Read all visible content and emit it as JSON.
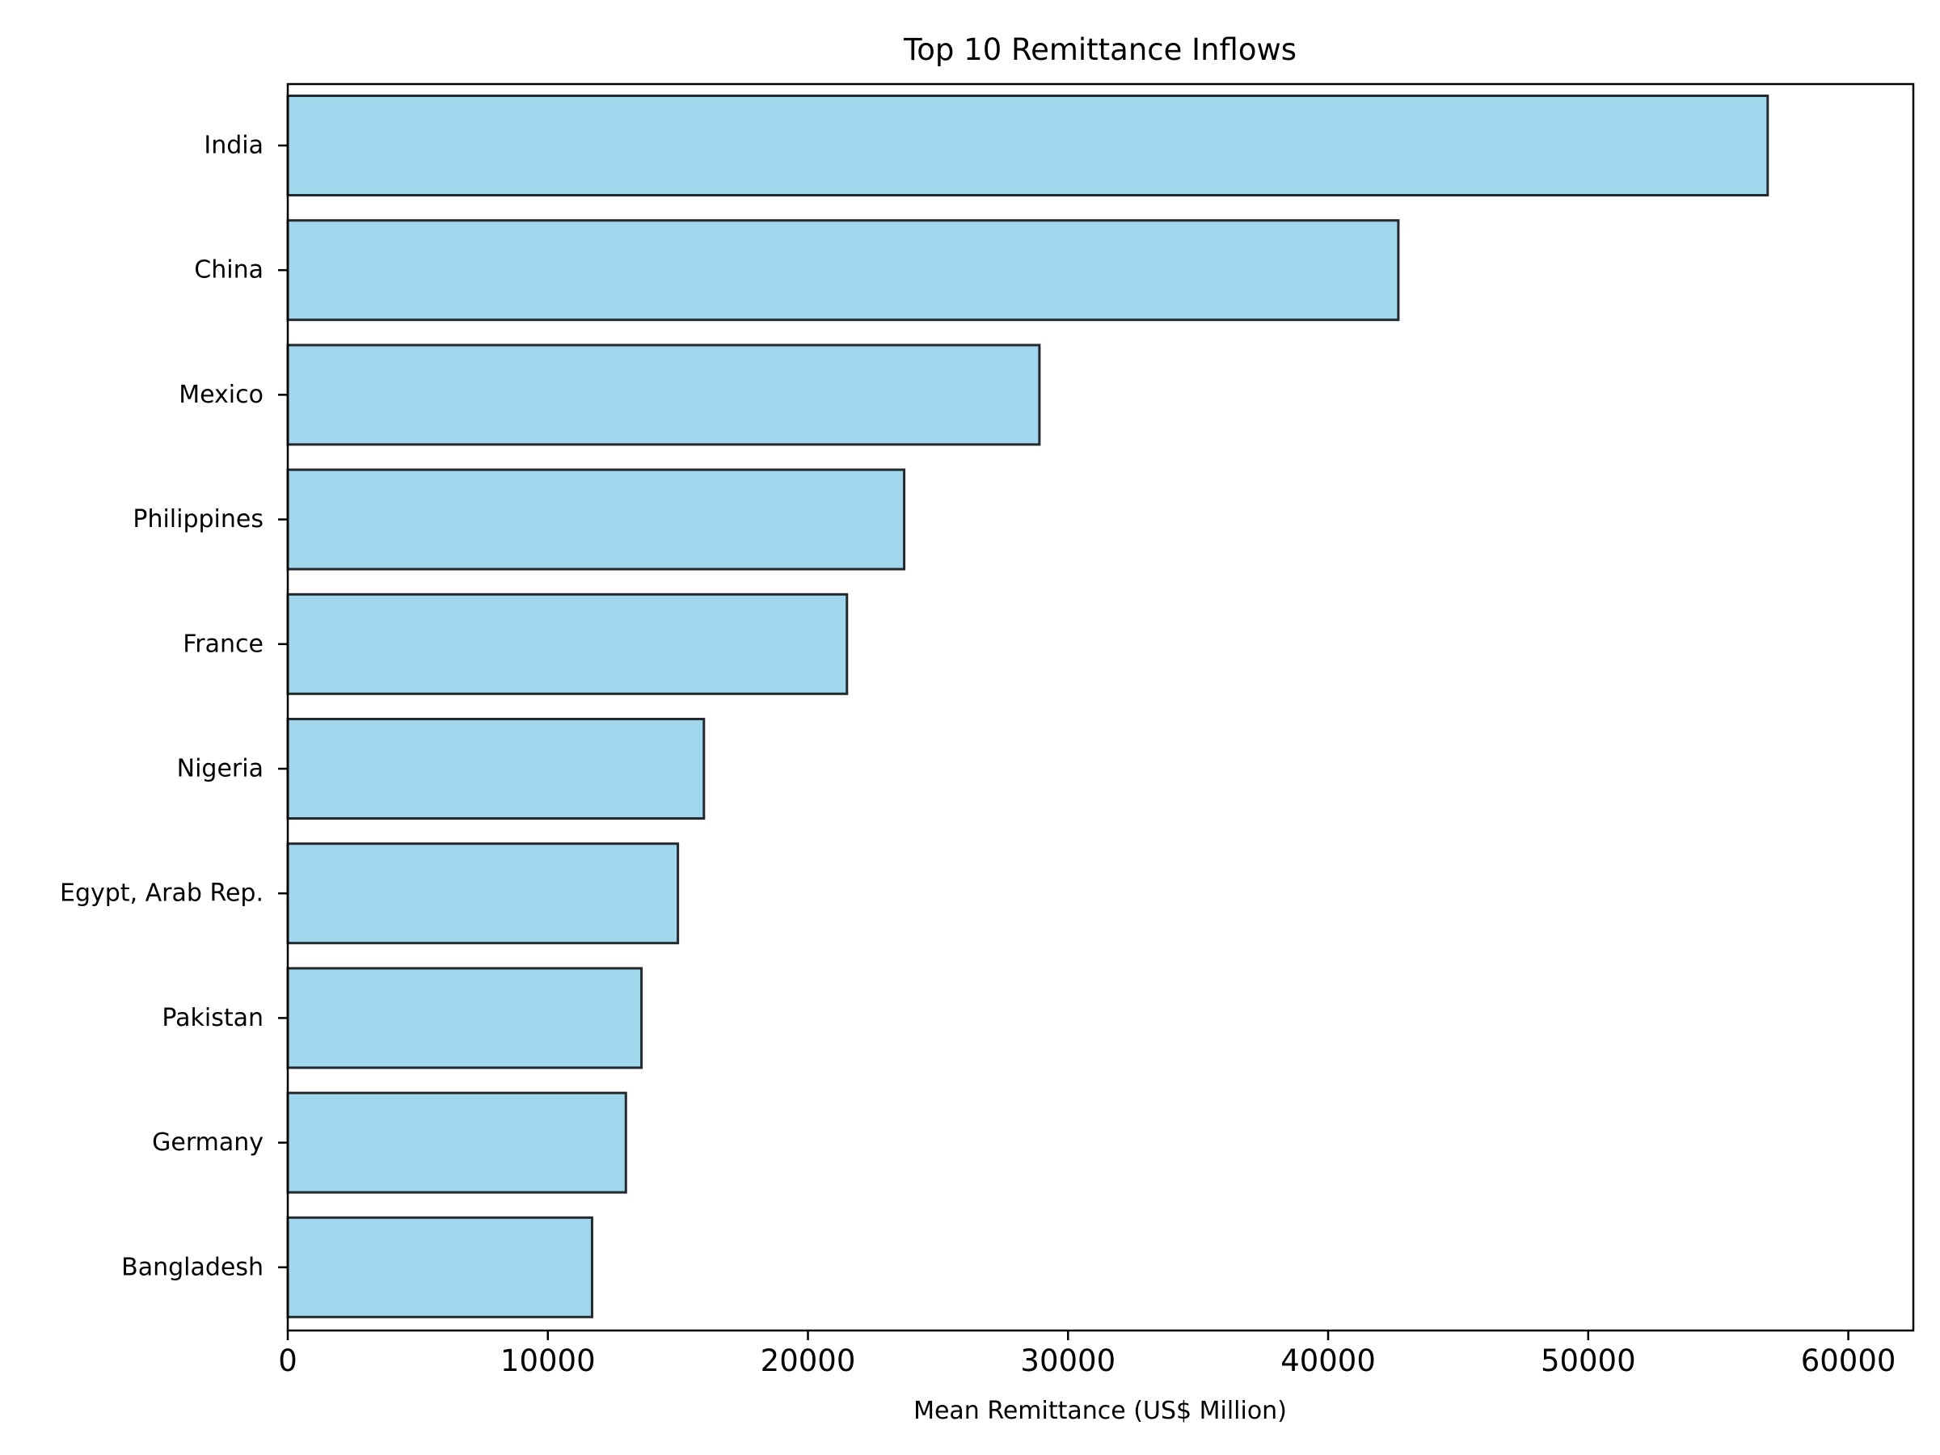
{
  "chart_data": {
    "type": "bar",
    "orientation": "horizontal",
    "title": "Top 10 Remittance Inflows",
    "xlabel": "Mean Remittance (US$ Million)",
    "ylabel": "",
    "categories": [
      "India",
      "China",
      "Mexico",
      "Philippines",
      "France",
      "Nigeria",
      "Egypt, Arab Rep.",
      "Pakistan",
      "Germany",
      "Bangladesh "
    ],
    "values": [
      56900,
      42700,
      28900,
      23700,
      21500,
      16000,
      15000,
      13600,
      13000,
      11700
    ],
    "xlim": [
      0,
      62500
    ],
    "xticks": [
      0,
      10000,
      20000,
      30000,
      40000,
      50000,
      60000
    ],
    "xtick_labels": [
      "0",
      "10000",
      "20000",
      "30000",
      "40000",
      "50000",
      "60000"
    ],
    "grid": false,
    "colors": {
      "bar_fill": "#a1d7ed",
      "bar_edge": "#23292e",
      "axis": "#000000"
    }
  }
}
